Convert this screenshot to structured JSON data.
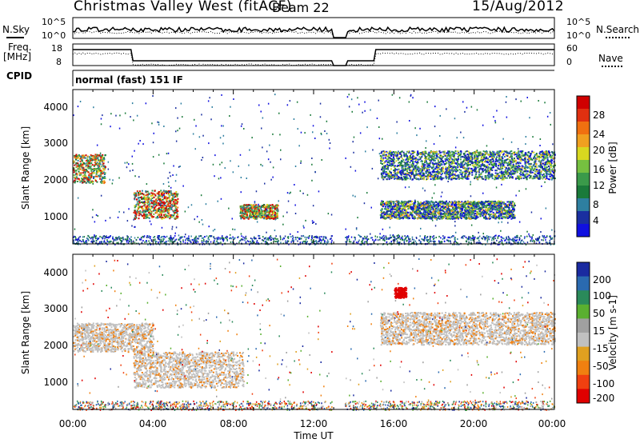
{
  "header": {
    "station": "Christmas Valley West (fitACF)",
    "beam": "Beam 22",
    "date": "15/Aug/2012"
  },
  "strip": {
    "nsky_label": "N.Sky",
    "nsearch_label": "N.Search",
    "freq_label": "Freq.",
    "freq_unit": "[MHz]",
    "nave_label": "Nave",
    "cpid_label": "CPID",
    "cpid_value": "normal (fast) 151 IF",
    "noise_ticks": [
      "10^5",
      "10^0"
    ],
    "freq_ticks": [
      "18",
      "8"
    ],
    "nave_ticks": [
      "60",
      "0"
    ]
  },
  "colors": {
    "power": [
      "#1010e0",
      "#1a2fa0",
      "#2e7fa0",
      "#1a7a3a",
      "#3a9a4a",
      "#76c040",
      "#d8d820",
      "#f0a020",
      "#f07010",
      "#e03010",
      "#d00000"
    ],
    "velocity": [
      "#1a2aa0",
      "#2a6ab0",
      "#2a8a5a",
      "#5ab030",
      "#a0a0a0",
      "#c0c0c0",
      "#e0a020",
      "#f08010",
      "#f04010",
      "#e00000"
    ]
  },
  "chart_data": [
    {
      "type": "heatmap",
      "name": "power",
      "ylabel": "Slant Range [km]",
      "xlabel": "",
      "ylim": [
        180,
        4500
      ],
      "y_ticks": [
        "1000",
        "2000",
        "3000",
        "4000"
      ],
      "colorbar_label": "Power [dB]",
      "colorbar_ticks": [
        "4",
        "8",
        "12",
        "16",
        "20",
        "24",
        "28"
      ],
      "features": [
        {
          "t": [
            0.0,
            1.6
          ],
          "r": [
            1900,
            2700
          ],
          "peak_dB": 26
        },
        {
          "t": [
            3.0,
            5.2
          ],
          "r": [
            900,
            1700
          ],
          "peak_dB": 30
        },
        {
          "t": [
            8.3,
            10.2
          ],
          "r": [
            900,
            1300
          ],
          "peak_dB": 28
        },
        {
          "t": [
            15.3,
            24.0
          ],
          "r": [
            2000,
            2800
          ],
          "peak_dB": 20
        },
        {
          "t": [
            15.3,
            22.0
          ],
          "r": [
            900,
            1400
          ],
          "peak_dB": 22
        }
      ]
    },
    {
      "type": "heatmap",
      "name": "velocity",
      "ylabel": "Slant Range [km]",
      "xlabel": "Time UT",
      "ylim": [
        180,
        4500
      ],
      "y_ticks": [
        "1000",
        "2000",
        "3000",
        "4000"
      ],
      "x_ticks": [
        "00:00",
        "04:00",
        "08:00",
        "12:00",
        "16:00",
        "20:00",
        "00:00"
      ],
      "colorbar_label": "Velocity [m s-1]",
      "colorbar_ticks": [
        "200",
        "100",
        "50",
        "15",
        "-15",
        "-50",
        "-100",
        "-200"
      ],
      "features": [
        {
          "t": [
            0.0,
            4.0
          ],
          "r": [
            1800,
            2600
          ],
          "velocity": 0
        },
        {
          "t": [
            3.0,
            8.5
          ],
          "r": [
            800,
            1800
          ],
          "velocity": 0
        },
        {
          "t": [
            15.3,
            24.0
          ],
          "r": [
            2000,
            2900
          ],
          "velocity": 0
        },
        {
          "t": [
            16.0,
            16.6
          ],
          "r": [
            3300,
            3600
          ],
          "velocity": -250
        }
      ]
    }
  ]
}
